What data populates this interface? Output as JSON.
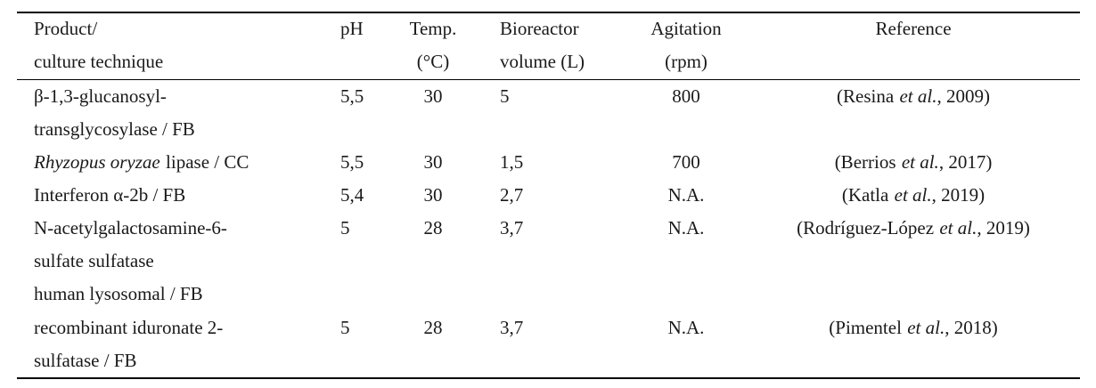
{
  "headers": {
    "product": [
      "Product/",
      "culture technique"
    ],
    "ph": [
      "pH"
    ],
    "temp": [
      "Temp.",
      "(°C)"
    ],
    "volume": [
      "Bioreactor",
      "volume (L)"
    ],
    "agitation": [
      "Agitation",
      "(rpm)"
    ],
    "reference": [
      "Reference"
    ]
  },
  "rows": [
    {
      "product_lines": [
        "β-1,3-glucanosyl-",
        "transglycosylase / FB"
      ],
      "ph": "5,5",
      "temp": "30",
      "volume": "5",
      "agitation": "800",
      "ref_author": "(Resina",
      "ref_etal": "et al.",
      "ref_year": ", 2009)"
    },
    {
      "product_italic": "Rhyzopus oryzae",
      "product_rest": "lipase / CC",
      "ph": "5,5",
      "temp": "30",
      "volume": "1,5",
      "agitation": "700",
      "ref_author": "(Berrios",
      "ref_etal": "et al.",
      "ref_year": ", 2017)"
    },
    {
      "product_lines": [
        "Interferon α-2b / FB"
      ],
      "ph": "5,4",
      "temp": "30",
      "volume": "2,7",
      "agitation": "N.A.",
      "ref_author": "(Katla",
      "ref_etal": "et al.",
      "ref_year": ", 2019)"
    },
    {
      "product_lines": [
        "N-acetylgalactosamine-6-",
        "sulfate sulfatase",
        "human lysosomal / FB"
      ],
      "ph": "5",
      "temp": "28",
      "volume": "3,7",
      "agitation": "N.A.",
      "ref_author": "(Rodríguez-López",
      "ref_etal": "et al.",
      "ref_year": ", 2019)"
    },
    {
      "product_lines": [
        "recombinant iduronate 2-",
        "sulfatase / FB"
      ],
      "ph": "5",
      "temp": "28",
      "volume": "3,7",
      "agitation": "N.A.",
      "ref_author": "(Pimentel",
      "ref_etal": "et al.",
      "ref_year": ", 2018)"
    }
  ]
}
